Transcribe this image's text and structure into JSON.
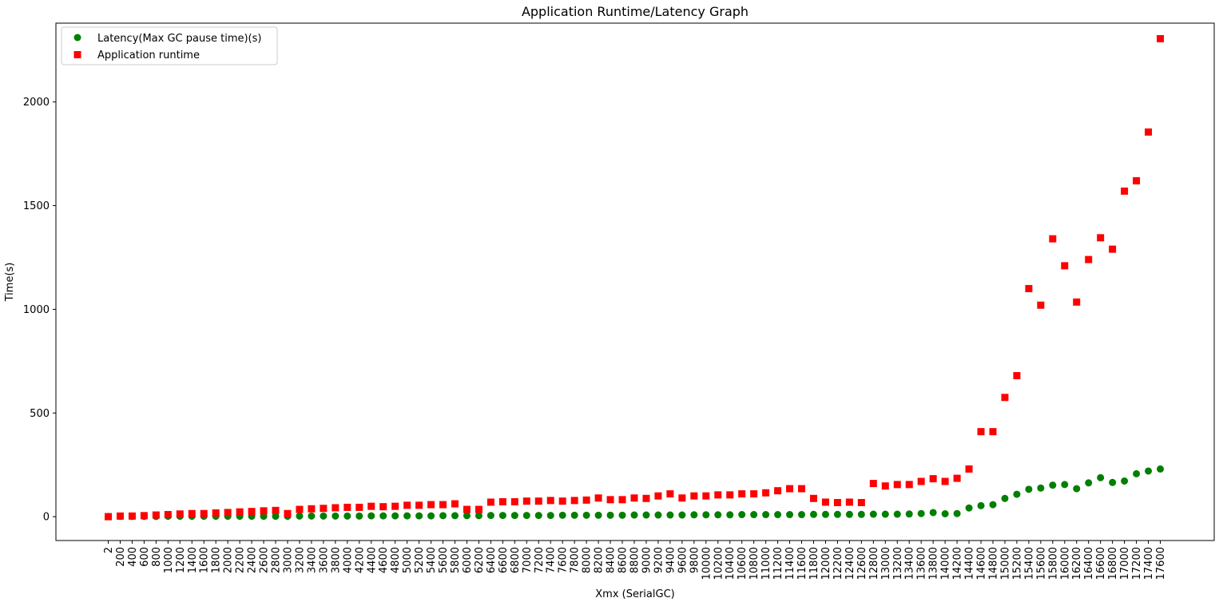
{
  "chart_data": {
    "type": "scatter",
    "title": "Application Runtime/Latency Graph",
    "xlabel": "Xmx (SerialGC)",
    "ylabel": "Time(s)",
    "ylim": [
      -115,
      2380
    ],
    "yticks": [
      0,
      500,
      1000,
      1500,
      2000
    ],
    "grid": false,
    "legend_position": "upper-left",
    "x": [
      "2",
      "200",
      "400",
      "600",
      "800",
      "1000",
      "1200",
      "1400",
      "1600",
      "1800",
      "2000",
      "2200",
      "2400",
      "2600",
      "2800",
      "3000",
      "3200",
      "3400",
      "3600",
      "3800",
      "4000",
      "4200",
      "4400",
      "4600",
      "4800",
      "5000",
      "5200",
      "5400",
      "5600",
      "5800",
      "6000",
      "6200",
      "6400",
      "6600",
      "6800",
      "7000",
      "7200",
      "7400",
      "7600",
      "7800",
      "8000",
      "8200",
      "8400",
      "8600",
      "8800",
      "9000",
      "9200",
      "9400",
      "9600",
      "9800",
      "10000",
      "10200",
      "10400",
      "10600",
      "10800",
      "11000",
      "11200",
      "11400",
      "11600",
      "11800",
      "12000",
      "12200",
      "12400",
      "12600",
      "12800",
      "13000",
      "13200",
      "13400",
      "13600",
      "13800",
      "14000",
      "14200",
      "14400",
      "14600",
      "14800",
      "15000",
      "15200",
      "15400",
      "15600",
      "15800",
      "16000",
      "16200",
      "16400",
      "16600",
      "16800",
      "17000",
      "17200",
      "17400",
      "17600"
    ],
    "series": [
      {
        "name": "Latency(Max GC pause time)(s)",
        "color": "#008000",
        "marker": "circle",
        "values": [
          1,
          1,
          1,
          1,
          1,
          2,
          2,
          2,
          2,
          2,
          2,
          2,
          2,
          2,
          2,
          2,
          3,
          3,
          3,
          3,
          3,
          3,
          4,
          4,
          4,
          4,
          4,
          4,
          5,
          5,
          5,
          5,
          6,
          6,
          6,
          6,
          6,
          6,
          7,
          7,
          7,
          7,
          7,
          7,
          8,
          8,
          8,
          8,
          8,
          9,
          9,
          9,
          9,
          10,
          10,
          10,
          10,
          10,
          10,
          11,
          11,
          11,
          11,
          11,
          12,
          12,
          12,
          13,
          15,
          20,
          14,
          15,
          42,
          53,
          58,
          88,
          108,
          132,
          138,
          152,
          155,
          135,
          163,
          188,
          165,
          172,
          207,
          220,
          230
        ]
      },
      {
        "name": "Application runtime",
        "color": "#ff0000",
        "marker": "square",
        "values": [
          0,
          3,
          3,
          5,
          8,
          10,
          13,
          15,
          15,
          18,
          20,
          23,
          25,
          28,
          30,
          15,
          35,
          38,
          40,
          43,
          45,
          45,
          50,
          48,
          50,
          55,
          55,
          58,
          58,
          62,
          35,
          35,
          70,
          72,
          72,
          75,
          75,
          78,
          75,
          78,
          80,
          90,
          82,
          82,
          90,
          88,
          100,
          110,
          90,
          100,
          100,
          105,
          105,
          110,
          110,
          115,
          125,
          135,
          135,
          88,
          70,
          68,
          70,
          68,
          160,
          148,
          155,
          155,
          170,
          183,
          170,
          185,
          230,
          410,
          410,
          575,
          680,
          1100,
          1020,
          1340,
          1210,
          1035,
          1240,
          1345,
          1290,
          1570,
          1620,
          1855,
          2305
        ]
      }
    ]
  }
}
